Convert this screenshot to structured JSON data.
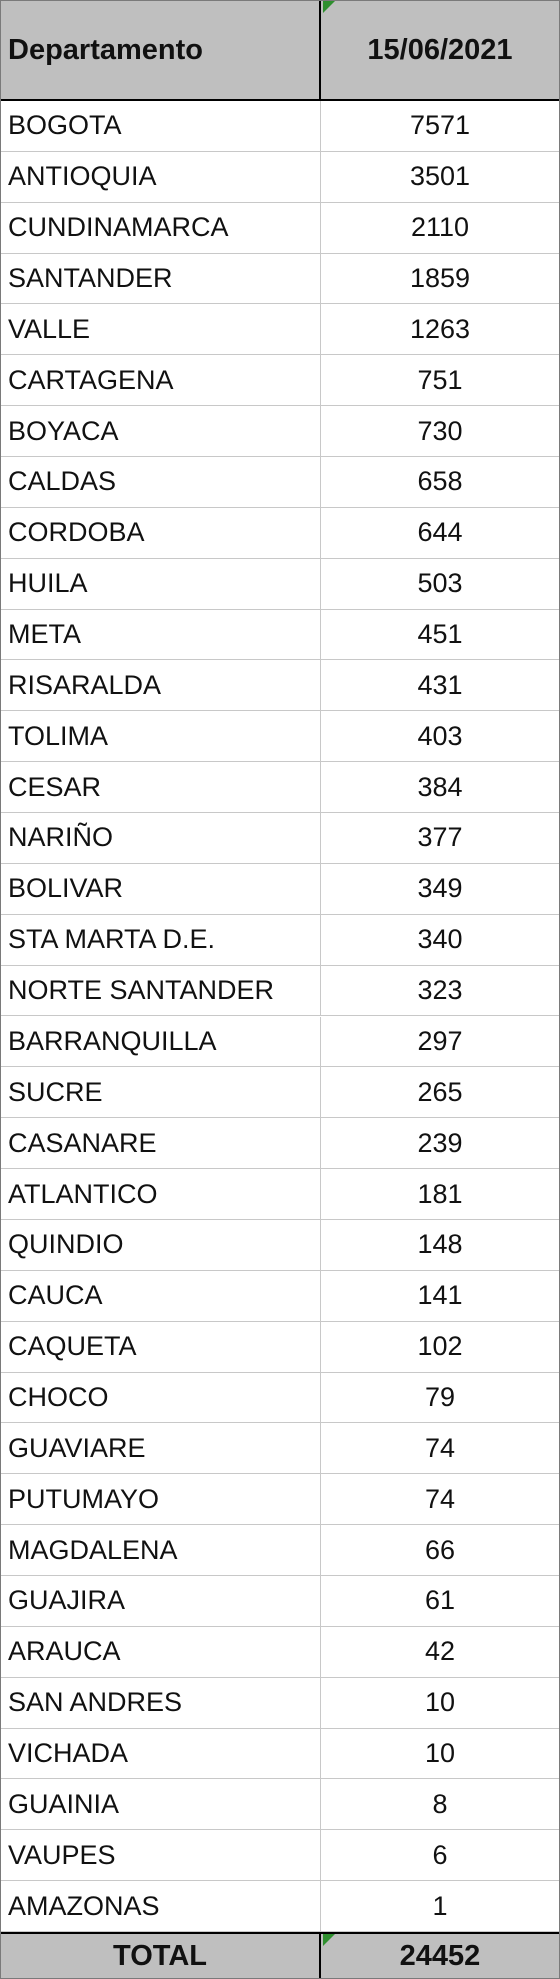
{
  "header": {
    "department_label": "Departamento",
    "date_label": "15/06/2021"
  },
  "rows": [
    {
      "name": "BOGOTA",
      "value": "7571"
    },
    {
      "name": "ANTIOQUIA",
      "value": "3501"
    },
    {
      "name": "CUNDINAMARCA",
      "value": "2110"
    },
    {
      "name": "SANTANDER",
      "value": "1859"
    },
    {
      "name": "VALLE",
      "value": "1263"
    },
    {
      "name": "CARTAGENA",
      "value": "751"
    },
    {
      "name": "BOYACA",
      "value": "730"
    },
    {
      "name": "CALDAS",
      "value": "658"
    },
    {
      "name": "CORDOBA",
      "value": "644"
    },
    {
      "name": "HUILA",
      "value": "503"
    },
    {
      "name": "META",
      "value": "451"
    },
    {
      "name": "RISARALDA",
      "value": "431"
    },
    {
      "name": "TOLIMA",
      "value": "403"
    },
    {
      "name": "CESAR",
      "value": "384"
    },
    {
      "name": "NARIÑO",
      "value": "377"
    },
    {
      "name": "BOLIVAR",
      "value": "349"
    },
    {
      "name": "STA MARTA D.E.",
      "value": "340"
    },
    {
      "name": "NORTE SANTANDER",
      "value": "323"
    },
    {
      "name": "BARRANQUILLA",
      "value": "297"
    },
    {
      "name": "SUCRE",
      "value": "265"
    },
    {
      "name": "CASANARE",
      "value": "239"
    },
    {
      "name": "ATLANTICO",
      "value": "181"
    },
    {
      "name": "QUINDIO",
      "value": "148"
    },
    {
      "name": "CAUCA",
      "value": "141"
    },
    {
      "name": "CAQUETA",
      "value": "102"
    },
    {
      "name": "CHOCO",
      "value": "79"
    },
    {
      "name": "GUAVIARE",
      "value": "74"
    },
    {
      "name": "PUTUMAYO",
      "value": "74"
    },
    {
      "name": "MAGDALENA",
      "value": "66"
    },
    {
      "name": "GUAJIRA",
      "value": "61"
    },
    {
      "name": "ARAUCA",
      "value": "42"
    },
    {
      "name": "SAN ANDRES",
      "value": "10"
    },
    {
      "name": "VICHADA",
      "value": "10"
    },
    {
      "name": "GUAINIA",
      "value": "8"
    },
    {
      "name": "VAUPES",
      "value": "6"
    },
    {
      "name": "AMAZONAS",
      "value": "1"
    }
  ],
  "total": {
    "label": "TOTAL",
    "value": "24452"
  },
  "colors": {
    "header_bg": "#bfbfbf",
    "marker": "#2f8f2f"
  }
}
